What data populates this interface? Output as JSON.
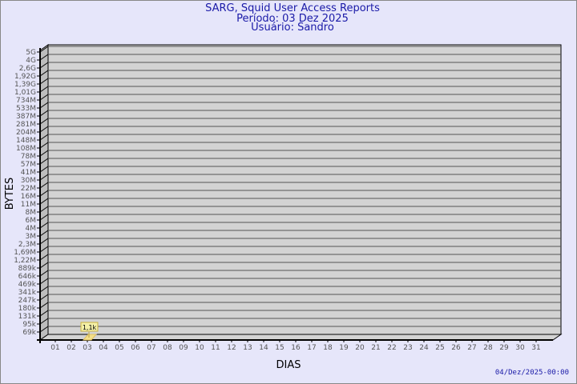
{
  "header": {
    "title": "SARG, Squid User Access Reports",
    "period": "Período: 03 Dez 2025",
    "user": "Usuário: Sandro"
  },
  "timestamp": "04/Dez/2025-00:00",
  "chart_data": {
    "type": "bar",
    "xlabel": "DIAS",
    "ylabel": "BYTES",
    "y_scale": "log",
    "grid": true,
    "y_tick_labels": [
      "5G",
      "4G",
      "2,6G",
      "1,92G",
      "1,39G",
      "1,01G",
      "734M",
      "533M",
      "387M",
      "281M",
      "204M",
      "148M",
      "108M",
      "78M",
      "57M",
      "41M",
      "30M",
      "22M",
      "16M",
      "11M",
      "8M",
      "6M",
      "4M",
      "3M",
      "2,3M",
      "1,69M",
      "1,22M",
      "889k",
      "646k",
      "469k",
      "341k",
      "247k",
      "180k",
      "131k",
      "95k",
      "69k"
    ],
    "categories": [
      "01",
      "02",
      "03",
      "04",
      "05",
      "06",
      "07",
      "08",
      "09",
      "10",
      "11",
      "12",
      "13",
      "14",
      "15",
      "16",
      "17",
      "18",
      "19",
      "20",
      "21",
      "22",
      "23",
      "24",
      "25",
      "26",
      "27",
      "28",
      "29",
      "30",
      "31"
    ],
    "values": [
      null,
      null,
      1100,
      null,
      null,
      null,
      null,
      null,
      null,
      null,
      null,
      null,
      null,
      null,
      null,
      null,
      null,
      null,
      null,
      null,
      null,
      null,
      null,
      null,
      null,
      null,
      null,
      null,
      null,
      null,
      null
    ],
    "data_labels": {
      "03": "1,1k"
    },
    "colors": {
      "bar": "#f5e08a",
      "label_bg": "#f4f0a8",
      "wall": "#d3d3d3",
      "side": "#bdbdbd"
    }
  }
}
